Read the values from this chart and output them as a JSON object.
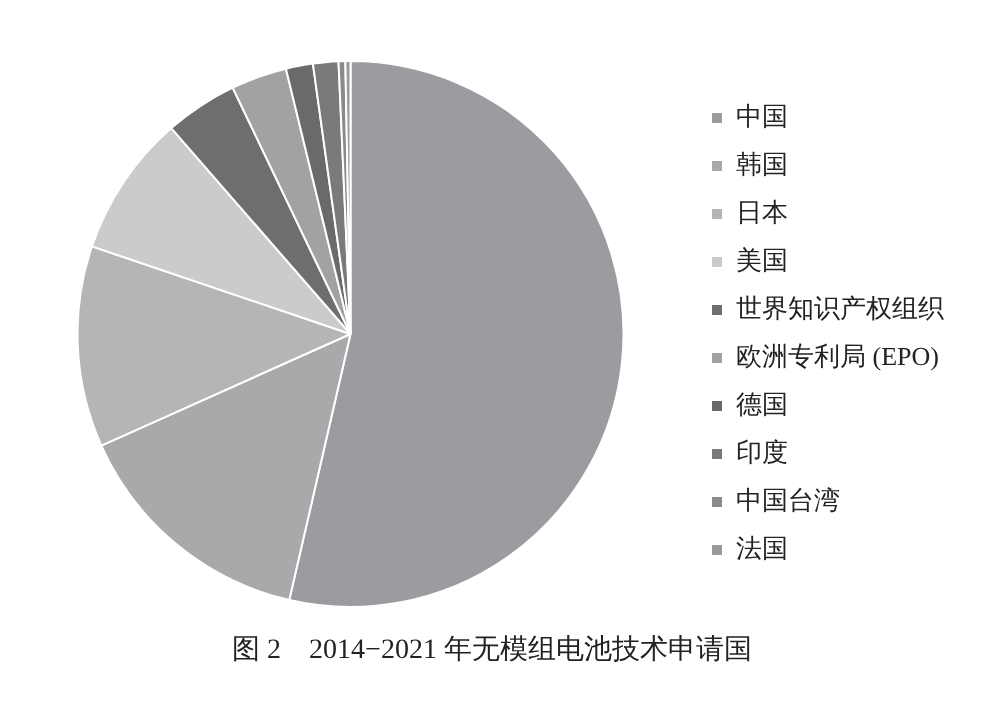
{
  "chart_data": {
    "type": "pie",
    "title": "图 2　2014−2021 年无模组电池技术申请国",
    "categories": [
      "中国",
      "韩国",
      "日本",
      "美国",
      "世界知识产权组织",
      "欧洲专利局 (EPO)",
      "德国",
      "印度",
      "中国台湾",
      "法国"
    ],
    "values": [
      53.6,
      14.7,
      11.9,
      8.4,
      4.3,
      3.3,
      1.6,
      1.5,
      0.4,
      0.3
    ],
    "colors": [
      "#9c9ca0",
      "#a9a9ab",
      "#b5b5b7",
      "#cbcbcd",
      "#6e6e70",
      "#a2a2a4",
      "#6a6a6c",
      "#7a7a7c",
      "#8a8a8c",
      "#9a9a9c"
    ],
    "legend": "right"
  }
}
